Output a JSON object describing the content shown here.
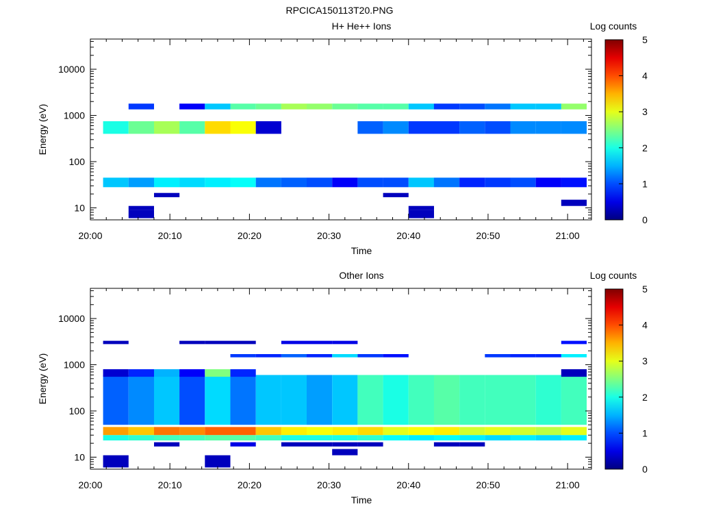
{
  "figure_title": "RPCICA150113T20.PNG",
  "chart_data": [
    {
      "type": "heatmap",
      "title": "H+ He++ Ions",
      "xlabel": "Time",
      "ylabel": "Energy (eV)",
      "x_ticks": [
        "20:00",
        "20:10",
        "20:20",
        "20:30",
        "20:40",
        "20:50",
        "21:00"
      ],
      "y_ticks": [
        "10",
        "100",
        "1000",
        "10000"
      ],
      "y_scale": "log",
      "ylim": [
        5.5,
        45000
      ],
      "xlim_minutes": [
        0,
        63
      ],
      "colorbar": {
        "label": "Log counts",
        "ticks": [
          "0",
          "1",
          "2",
          "3",
          "4",
          "5"
        ],
        "range": [
          0,
          5
        ]
      },
      "time_bins_minutes": [
        [
          1.6,
          4.8
        ],
        [
          4.8,
          8.0
        ],
        [
          8.0,
          11.2
        ],
        [
          11.2,
          14.4
        ],
        [
          14.4,
          17.6
        ],
        [
          17.6,
          20.8
        ],
        [
          20.8,
          24.0
        ],
        [
          24.0,
          27.2
        ],
        [
          27.2,
          30.4
        ],
        [
          30.4,
          33.6
        ],
        [
          33.6,
          36.8
        ],
        [
          36.8,
          40.0
        ],
        [
          40.0,
          43.2
        ],
        [
          43.2,
          46.4
        ],
        [
          46.4,
          49.6
        ],
        [
          49.6,
          52.8
        ],
        [
          52.8,
          56.0
        ],
        [
          56.0,
          59.2
        ],
        [
          59.2,
          62.4
        ]
      ],
      "bands": [
        {
          "e_low": 28,
          "e_high": 45,
          "values": [
            1.6,
            1.4,
            1.8,
            1.7,
            1.8,
            1.9,
            1.2,
            1.1,
            1.0,
            0.6,
            1.0,
            1.0,
            1.6,
            1.2,
            0.8,
            0.9,
            1.0,
            0.6,
            0.7
          ]
        },
        {
          "e_low": 400,
          "e_high": 750,
          "values": [
            2.0,
            2.4,
            2.7,
            2.3,
            3.3,
            3.1,
            0.4,
            0,
            0,
            0,
            1.1,
            1.3,
            0.9,
            0.9,
            1.1,
            1.0,
            1.3,
            1.3,
            1.3
          ]
        },
        {
          "e_low": 1350,
          "e_high": 1800,
          "values": [
            0,
            0.9,
            0,
            0.6,
            1.6,
            2.3,
            2.4,
            2.7,
            2.6,
            2.4,
            2.3,
            2.3,
            1.6,
            0.9,
            1.0,
            1.2,
            1.6,
            1.6,
            2.6
          ]
        },
        {
          "e_low": 9,
          "e_high": 11,
          "values": [
            0,
            0.3,
            0,
            0,
            0,
            0,
            0,
            0,
            0,
            0,
            0,
            0,
            0.3,
            0,
            0,
            0,
            0,
            0,
            0
          ]
        },
        {
          "e_low": 6,
          "e_high": 9,
          "values": [
            0,
            0.3,
            0,
            0,
            0,
            0,
            0,
            0,
            0,
            0,
            0,
            0,
            0.3,
            0,
            0,
            0,
            0,
            0,
            0
          ]
        },
        {
          "e_low": 17,
          "e_high": 21,
          "values": [
            0,
            0,
            0.3,
            0,
            0,
            0,
            0,
            0,
            0,
            0,
            0,
            0.3,
            0,
            0,
            0,
            0,
            0,
            0,
            0
          ]
        },
        {
          "e_low": 11,
          "e_high": 15,
          "values": [
            0,
            0,
            0,
            0,
            0,
            0,
            0,
            0,
            0,
            0,
            0,
            0,
            0,
            0,
            0,
            0,
            0,
            0,
            0.3
          ]
        }
      ]
    },
    {
      "type": "heatmap",
      "title": "Other Ions",
      "xlabel": "Time",
      "ylabel": "Energy (eV)",
      "x_ticks": [
        "20:00",
        "20:10",
        "20:20",
        "20:30",
        "20:40",
        "20:50",
        "21:00"
      ],
      "y_ticks": [
        "10",
        "100",
        "1000",
        "10000"
      ],
      "y_scale": "log",
      "ylim": [
        5.5,
        45000
      ],
      "xlim_minutes": [
        0,
        63
      ],
      "colorbar": {
        "label": "Log counts",
        "ticks": [
          "0",
          "1",
          "2",
          "3",
          "4",
          "5"
        ],
        "range": [
          0,
          5
        ]
      },
      "time_bins_minutes": [
        [
          1.6,
          4.8
        ],
        [
          4.8,
          8.0
        ],
        [
          8.0,
          11.2
        ],
        [
          11.2,
          14.4
        ],
        [
          14.4,
          17.6
        ],
        [
          17.6,
          20.8
        ],
        [
          20.8,
          24.0
        ],
        [
          24.0,
          27.2
        ],
        [
          27.2,
          30.4
        ],
        [
          30.4,
          33.6
        ],
        [
          33.6,
          36.8
        ],
        [
          36.8,
          40.0
        ],
        [
          40.0,
          43.2
        ],
        [
          43.2,
          46.4
        ],
        [
          46.4,
          49.6
        ],
        [
          49.6,
          52.8
        ],
        [
          52.8,
          56.0
        ],
        [
          56.0,
          59.2
        ],
        [
          59.2,
          62.4
        ]
      ],
      "bands": [
        {
          "e_low": 30,
          "e_high": 45,
          "values": [
            3.6,
            3.4,
            3.8,
            3.7,
            3.9,
            3.9,
            3.4,
            3.2,
            3.1,
            3.2,
            3.3,
            3.0,
            3.1,
            3.2,
            2.9,
            3.0,
            2.9,
            2.8,
            3.0
          ]
        },
        {
          "e_low": 23,
          "e_high": 30,
          "values": [
            2.0,
            2.1,
            2.2,
            2.2,
            2.3,
            2.3,
            2.2,
            2.0,
            2.0,
            2.0,
            2.1,
            1.9,
            1.8,
            1.9,
            1.8,
            1.7,
            1.8,
            1.7,
            1.8
          ]
        },
        {
          "e_low": 50,
          "e_high": 600,
          "values": [
            1.1,
            1.3,
            1.6,
            1.0,
            1.7,
            1.2,
            1.6,
            1.6,
            1.4,
            1.6,
            2.2,
            2.0,
            2.2,
            2.3,
            2.2,
            2.2,
            2.2,
            2.1,
            2.2
          ]
        },
        {
          "e_low": 550,
          "e_high": 800,
          "values": [
            0.4,
            0.8,
            1.5,
            0.6,
            2.5,
            0.8,
            0,
            0,
            0,
            0,
            0,
            0,
            0,
            0,
            0,
            0,
            0,
            0,
            0.3
          ]
        },
        {
          "e_low": 1450,
          "e_high": 1700,
          "values": [
            0,
            0,
            0,
            0,
            0,
            0.9,
            0.8,
            1.1,
            0.8,
            1.7,
            0.9,
            0.7,
            0,
            0,
            0,
            0.9,
            0.8,
            0.8,
            1.8
          ]
        },
        {
          "e_low": 2800,
          "e_high": 3300,
          "values": [
            0.3,
            0,
            0,
            0.3,
            0.3,
            0.3,
            0,
            0.5,
            0.5,
            0.5,
            0,
            0,
            0,
            0,
            0,
            0,
            0,
            0,
            0.7
          ]
        },
        {
          "e_low": 6,
          "e_high": 11,
          "values": [
            0.3,
            0,
            0,
            0,
            0.3,
            0,
            0,
            0,
            0,
            0,
            0,
            0,
            0,
            0,
            0,
            0,
            0,
            0,
            0
          ]
        },
        {
          "e_low": 17,
          "e_high": 21,
          "values": [
            0,
            0,
            0.3,
            0,
            0,
            0.5,
            0,
            0.3,
            0.3,
            0.3,
            0.3,
            0,
            0,
            0.3,
            0.3,
            0,
            0,
            0,
            0
          ]
        },
        {
          "e_low": 11,
          "e_high": 15,
          "values": [
            0,
            0,
            0,
            0,
            0,
            0,
            0,
            0,
            0,
            0.3,
            0,
            0,
            0,
            0,
            0,
            0,
            0,
            0,
            0
          ]
        }
      ]
    }
  ]
}
